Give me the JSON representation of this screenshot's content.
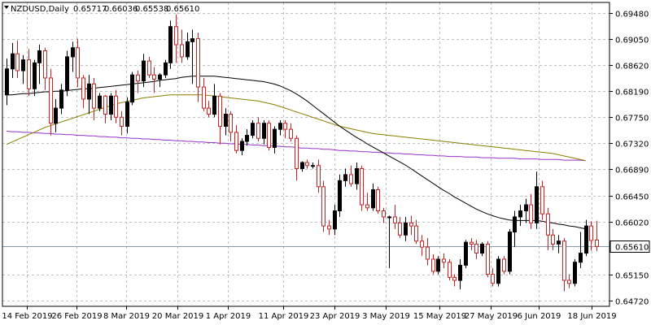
{
  "header": {
    "symbol_tf": "NZDUSD,Daily",
    "open": "0.65717",
    "high": "0.66036",
    "low": "0.65538",
    "close": "0.65610",
    "menu_icon": "triangle-down-icon"
  },
  "chart_data": {
    "type": "candlestick",
    "symbol": "NZDUSD",
    "timeframe": "Daily",
    "ylim": [
      0.6462,
      0.6965
    ],
    "y_ticks": [
      "0.69480",
      "0.69050",
      "0.68620",
      "0.68190",
      "0.67750",
      "0.67320",
      "0.66890",
      "0.66450",
      "0.66020",
      "0.65610",
      "0.65150",
      "0.64720"
    ],
    "x_ticks": [
      "14 Feb 2019",
      "26 Feb 2019",
      "8 Mar 2019",
      "20 Mar 2019",
      "1 Apr 2019",
      "11 Apr 2019",
      "23 Apr 2019",
      "3 May 2019",
      "15 May 2019",
      "27 May 2019",
      "6 Jun 2019",
      "18 Jun 2019"
    ],
    "current_price": "0.65610",
    "grid": true,
    "colors": {
      "bull": "#000000",
      "bear": "#cc2222",
      "ma_fast": "#000000",
      "ma_mid": "#8b7d00",
      "ma_slow": "#9932cc",
      "bid_line": "#8899aa"
    },
    "candles": [
      [
        0.6812,
        0.6872,
        0.6795,
        0.6855
      ],
      [
        0.6855,
        0.6898,
        0.684,
        0.688
      ],
      [
        0.688,
        0.6902,
        0.684,
        0.6852
      ],
      [
        0.6852,
        0.6878,
        0.683,
        0.687
      ],
      [
        0.687,
        0.6888,
        0.681,
        0.6822
      ],
      [
        0.6822,
        0.687,
        0.681,
        0.6865
      ],
      [
        0.6865,
        0.6895,
        0.683,
        0.6885
      ],
      [
        0.6885,
        0.689,
        0.682,
        0.684
      ],
      [
        0.684,
        0.6855,
        0.6745,
        0.6765
      ],
      [
        0.6765,
        0.6805,
        0.675,
        0.679
      ],
      [
        0.679,
        0.683,
        0.678,
        0.682
      ],
      [
        0.682,
        0.6885,
        0.681,
        0.6875
      ],
      [
        0.6875,
        0.69,
        0.685,
        0.689
      ],
      [
        0.689,
        0.6905,
        0.6825,
        0.684
      ],
      [
        0.684,
        0.6845,
        0.679,
        0.6805
      ],
      [
        0.6805,
        0.6845,
        0.678,
        0.683
      ],
      [
        0.683,
        0.684,
        0.677,
        0.679
      ],
      [
        0.679,
        0.6815,
        0.6785,
        0.681
      ],
      [
        0.681,
        0.6812,
        0.6765,
        0.678
      ],
      [
        0.678,
        0.6815,
        0.677,
        0.681
      ],
      [
        0.681,
        0.682,
        0.6765,
        0.6775
      ],
      [
        0.6775,
        0.6785,
        0.6745,
        0.676
      ],
      [
        0.676,
        0.6808,
        0.6748,
        0.68
      ],
      [
        0.68,
        0.685,
        0.6795,
        0.6845
      ],
      [
        0.6845,
        0.6852,
        0.6815,
        0.6835
      ],
      [
        0.6835,
        0.688,
        0.6825,
        0.6868
      ],
      [
        0.6868,
        0.6875,
        0.684,
        0.6845
      ],
      [
        0.6845,
        0.6858,
        0.6815,
        0.6838
      ],
      [
        0.6838,
        0.6848,
        0.6825,
        0.6845
      ],
      [
        0.6845,
        0.687,
        0.684,
        0.6865
      ],
      [
        0.6865,
        0.6935,
        0.6855,
        0.6925
      ],
      [
        0.6925,
        0.6945,
        0.6865,
        0.6895
      ],
      [
        0.6895,
        0.692,
        0.6865,
        0.6875
      ],
      [
        0.6875,
        0.6915,
        0.687,
        0.69
      ],
      [
        0.69,
        0.692,
        0.683,
        0.6905
      ],
      [
        0.6905,
        0.6915,
        0.68,
        0.6825
      ],
      [
        0.6825,
        0.684,
        0.6785,
        0.679
      ],
      [
        0.679,
        0.6802,
        0.6775,
        0.678
      ],
      [
        0.678,
        0.683,
        0.6775,
        0.681
      ],
      [
        0.681,
        0.6815,
        0.673,
        0.676
      ],
      [
        0.676,
        0.679,
        0.6745,
        0.678
      ],
      [
        0.678,
        0.6785,
        0.6735,
        0.675
      ],
      [
        0.675,
        0.6762,
        0.6715,
        0.672
      ],
      [
        0.672,
        0.674,
        0.6712,
        0.6735
      ],
      [
        0.6735,
        0.6755,
        0.6728,
        0.6745
      ],
      [
        0.6745,
        0.677,
        0.674,
        0.6765
      ],
      [
        0.6765,
        0.6775,
        0.6735,
        0.674
      ],
      [
        0.674,
        0.677,
        0.673,
        0.6765
      ],
      [
        0.6765,
        0.677,
        0.672,
        0.6725
      ],
      [
        0.6725,
        0.676,
        0.6715,
        0.6755
      ],
      [
        0.6755,
        0.677,
        0.6745,
        0.6765
      ],
      [
        0.6765,
        0.677,
        0.674,
        0.6755
      ],
      [
        0.6755,
        0.6765,
        0.6735,
        0.674
      ],
      [
        0.674,
        0.6745,
        0.667,
        0.669
      ],
      [
        0.669,
        0.6702,
        0.6685,
        0.67
      ],
      [
        0.67,
        0.6705,
        0.669,
        0.6695
      ],
      [
        0.6695,
        0.67,
        0.669,
        0.6695
      ],
      [
        0.6695,
        0.6705,
        0.665,
        0.666
      ],
      [
        0.666,
        0.667,
        0.6585,
        0.6595
      ],
      [
        0.6595,
        0.6605,
        0.658,
        0.659
      ],
      [
        0.659,
        0.663,
        0.658,
        0.662
      ],
      [
        0.662,
        0.668,
        0.661,
        0.667
      ],
      [
        0.667,
        0.669,
        0.666,
        0.668
      ],
      [
        0.668,
        0.6695,
        0.666,
        0.6665
      ],
      [
        0.6665,
        0.67,
        0.6655,
        0.669
      ],
      [
        0.669,
        0.6695,
        0.662,
        0.663
      ],
      [
        0.663,
        0.665,
        0.662,
        0.6625
      ],
      [
        0.6625,
        0.6665,
        0.662,
        0.6655
      ],
      [
        0.6655,
        0.666,
        0.6615,
        0.662
      ],
      [
        0.662,
        0.6625,
        0.66,
        0.661
      ],
      [
        0.661,
        0.6612,
        0.6525,
        0.661
      ],
      [
        0.661,
        0.663,
        0.659,
        0.66
      ],
      [
        0.66,
        0.661,
        0.6575,
        0.658
      ],
      [
        0.658,
        0.661,
        0.657,
        0.66
      ],
      [
        0.66,
        0.6612,
        0.658,
        0.6595
      ],
      [
        0.6595,
        0.6605,
        0.6565,
        0.657
      ],
      [
        0.657,
        0.658,
        0.6545,
        0.656
      ],
      [
        0.656,
        0.6575,
        0.653,
        0.654
      ],
      [
        0.654,
        0.6548,
        0.6515,
        0.652
      ],
      [
        0.652,
        0.6545,
        0.6515,
        0.654
      ],
      [
        0.654,
        0.655,
        0.6525,
        0.6535
      ],
      [
        0.6535,
        0.654,
        0.6505,
        0.651
      ],
      [
        0.651,
        0.6515,
        0.6495,
        0.6505
      ],
      [
        0.6505,
        0.654,
        0.649,
        0.653
      ],
      [
        0.653,
        0.6572,
        0.6525,
        0.6568
      ],
      [
        0.6568,
        0.6575,
        0.6555,
        0.6565
      ],
      [
        0.6565,
        0.6572,
        0.654,
        0.655
      ],
      [
        0.655,
        0.6568,
        0.6545,
        0.6565
      ],
      [
        0.6565,
        0.657,
        0.651,
        0.6515
      ],
      [
        0.6515,
        0.6525,
        0.6495,
        0.65
      ],
      [
        0.65,
        0.6545,
        0.6495,
        0.654
      ],
      [
        0.654,
        0.6545,
        0.6515,
        0.652
      ],
      [
        0.652,
        0.659,
        0.6515,
        0.6585
      ],
      [
        0.6585,
        0.662,
        0.656,
        0.661
      ],
      [
        0.661,
        0.663,
        0.6595,
        0.662
      ],
      [
        0.662,
        0.664,
        0.66,
        0.663
      ],
      [
        0.663,
        0.6648,
        0.659,
        0.66
      ],
      [
        0.66,
        0.6685,
        0.659,
        0.666
      ],
      [
        0.666,
        0.667,
        0.6605,
        0.6615
      ],
      [
        0.6615,
        0.6625,
        0.6555,
        0.658
      ],
      [
        0.658,
        0.659,
        0.6555,
        0.6565
      ],
      [
        0.6565,
        0.658,
        0.655,
        0.657
      ],
      [
        0.657,
        0.6575,
        0.6487,
        0.6505
      ],
      [
        0.6505,
        0.6515,
        0.6492,
        0.65
      ],
      [
        0.65,
        0.654,
        0.6495,
        0.6535
      ],
      [
        0.6535,
        0.6585,
        0.6525,
        0.655
      ],
      [
        0.655,
        0.6605,
        0.6545,
        0.6595
      ],
      [
        0.6595,
        0.6603,
        0.6554,
        0.6571
      ],
      [
        0.65717,
        0.66036,
        0.65538,
        0.6561
      ]
    ],
    "ma_fast": [
      0.6812,
      0.6812,
      0.6813,
      0.6814,
      0.6814,
      0.6815,
      0.6816,
      0.6817,
      0.6817,
      0.6818,
      0.6818,
      0.6819,
      0.682,
      0.6821,
      0.6822,
      0.6822,
      0.6823,
      0.6824,
      0.6825,
      0.6826,
      0.6827,
      0.6828,
      0.6829,
      0.683,
      0.6831,
      0.6832,
      0.6833,
      0.6834,
      0.6836,
      0.6837,
      0.6838,
      0.6839,
      0.6841,
      0.6842,
      0.6843,
      0.6843,
      0.6843,
      0.6843,
      0.6843,
      0.6842,
      0.6841,
      0.684,
      0.6839,
      0.6838,
      0.6837,
      0.6836,
      0.6835,
      0.6834,
      0.6832,
      0.683,
      0.6827,
      0.6823,
      0.6819,
      0.6814,
      0.6808,
      0.6802,
      0.6795,
      0.6788,
      0.6781,
      0.6774,
      0.6767,
      0.676,
      0.6754,
      0.6748,
      0.6742,
      0.6737,
      0.6731,
      0.6726,
      0.6721,
      0.6716,
      0.6711,
      0.6706,
      0.6701,
      0.6696,
      0.669,
      0.6684,
      0.6678,
      0.6672,
      0.6666,
      0.666,
      0.6654,
      0.6649,
      0.6643,
      0.6638,
      0.6633,
      0.6628,
      0.6623,
      0.6619,
      0.6615,
      0.6612,
      0.6609,
      0.6607,
      0.6605,
      0.6604,
      0.6604,
      0.6604,
      0.6604,
      0.6604,
      0.6603,
      0.6601,
      0.66,
      0.6598,
      0.6597,
      0.6595,
      0.6594,
      0.6592,
      0.659
    ],
    "ma_mid": [
      0.673,
      0.6734,
      0.6738,
      0.6742,
      0.6746,
      0.675,
      0.6754,
      0.6758,
      0.6761,
      0.6764,
      0.6767,
      0.677,
      0.6773,
      0.6776,
      0.6779,
      0.6782,
      0.6785,
      0.6788,
      0.6791,
      0.6794,
      0.6797,
      0.6799,
      0.6801,
      0.6803,
      0.6805,
      0.6807,
      0.6808,
      0.6809,
      0.681,
      0.6811,
      0.6812,
      0.6812,
      0.6812,
      0.6812,
      0.6812,
      0.6812,
      0.6812,
      0.6811,
      0.681,
      0.6809,
      0.6808,
      0.6807,
      0.6806,
      0.6805,
      0.6804,
      0.6803,
      0.6802,
      0.68,
      0.6798,
      0.6796,
      0.6793,
      0.679,
      0.6787,
      0.6784,
      0.6781,
      0.6778,
      0.6775,
      0.6772,
      0.6769,
      0.6766,
      0.6763,
      0.676,
      0.6758,
      0.6756,
      0.6754,
      0.6752,
      0.675,
      0.6748,
      0.6747,
      0.6746,
      0.6745,
      0.6744,
      0.6743,
      0.6742,
      0.6741,
      0.674,
      0.6739,
      0.6738,
      0.6737,
      0.6736,
      0.6735,
      0.6734,
      0.6733,
      0.6732,
      0.6731,
      0.673,
      0.6729,
      0.6728,
      0.6727,
      0.6726,
      0.6725,
      0.6724,
      0.6723,
      0.6722,
      0.6721,
      0.672,
      0.6719,
      0.6718,
      0.6717,
      0.6716,
      0.6715,
      0.6713,
      0.6711,
      0.6709,
      0.6707,
      0.6705,
      0.6703
    ],
    "ma_slow": [
      0.6752,
      0.6751,
      0.6751,
      0.675,
      0.675,
      0.6749,
      0.6749,
      0.6748,
      0.6748,
      0.6747,
      0.6747,
      0.6746,
      0.6746,
      0.6745,
      0.6745,
      0.6744,
      0.6744,
      0.6743,
      0.6743,
      0.6742,
      0.6742,
      0.6741,
      0.6741,
      0.674,
      0.674,
      0.6739,
      0.6739,
      0.6738,
      0.6738,
      0.6737,
      0.6737,
      0.6736,
      0.6736,
      0.6735,
      0.6735,
      0.6734,
      0.6734,
      0.6733,
      0.6733,
      0.6732,
      0.6732,
      0.6731,
      0.6731,
      0.673,
      0.673,
      0.6729,
      0.6729,
      0.6728,
      0.6728,
      0.6727,
      0.6727,
      0.6726,
      0.6726,
      0.6725,
      0.6724,
      0.6724,
      0.6723,
      0.6723,
      0.6722,
      0.6722,
      0.6721,
      0.672,
      0.672,
      0.6719,
      0.6719,
      0.6718,
      0.6718,
      0.6717,
      0.6717,
      0.6716,
      0.6716,
      0.6715,
      0.6715,
      0.6714,
      0.6714,
      0.6713,
      0.6713,
      0.6712,
      0.6712,
      0.6711,
      0.6711,
      0.671,
      0.671,
      0.671,
      0.6709,
      0.6709,
      0.6709,
      0.6708,
      0.6708,
      0.6708,
      0.6707,
      0.6707,
      0.6707,
      0.6707,
      0.6706,
      0.6706,
      0.6706,
      0.6706,
      0.6705,
      0.6705,
      0.6705,
      0.6705,
      0.6704,
      0.6704,
      0.6704,
      0.6704,
      0.6703
    ]
  }
}
